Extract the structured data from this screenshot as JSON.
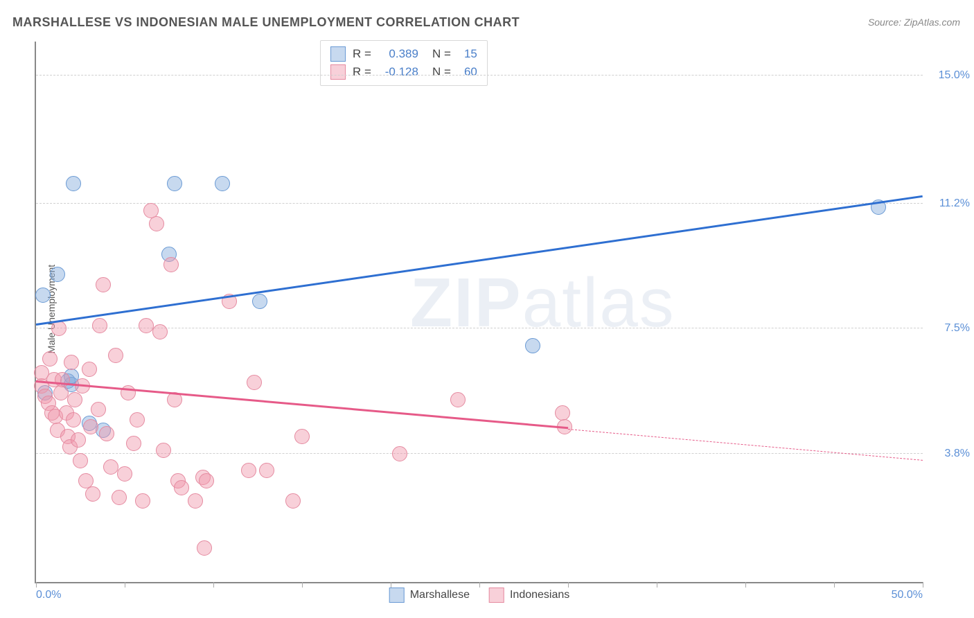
{
  "title": "MARSHALLESE VS INDONESIAN MALE UNEMPLOYMENT CORRELATION CHART",
  "source": "Source: ZipAtlas.com",
  "ylabel": "Male Unemployment",
  "watermark_a": "ZIP",
  "watermark_b": "atlas",
  "chart": {
    "type": "scatter",
    "xlim": [
      0,
      50
    ],
    "ylim": [
      0,
      16
    ],
    "x_ticks": [
      0,
      5,
      10,
      15,
      20,
      25,
      30,
      35,
      40,
      45,
      50
    ],
    "x_tick_labels": {
      "0": "0.0%",
      "50": "50.0%"
    },
    "y_gridlines": [
      3.8,
      7.5,
      11.2,
      15.0
    ],
    "y_grid_labels": [
      "3.8%",
      "7.5%",
      "11.2%",
      "15.0%"
    ],
    "grid_color": "#d0d0d0",
    "axis_color": "#888888",
    "label_color": "#5b8fd6",
    "background_color": "#ffffff",
    "point_radius": 10,
    "series": [
      {
        "name": "Marshallese",
        "fill": "rgba(130,170,220,0.45)",
        "stroke": "#6a9ad4",
        "R": "0.389",
        "N": "15",
        "trend": {
          "x1": 0,
          "y1": 7.6,
          "x2": 50,
          "y2": 11.4,
          "solid_until_x": 50,
          "color": "#2e6fd1",
          "width": 3
        },
        "points": [
          [
            0.4,
            8.5
          ],
          [
            0.5,
            5.6
          ],
          [
            1.2,
            9.1
          ],
          [
            1.8,
            5.95
          ],
          [
            2.0,
            5.85
          ],
          [
            2.1,
            11.8
          ],
          [
            2.0,
            6.1
          ],
          [
            3.0,
            4.7
          ],
          [
            3.8,
            4.5
          ],
          [
            7.5,
            9.7
          ],
          [
            7.8,
            11.8
          ],
          [
            10.5,
            11.8
          ],
          [
            12.6,
            8.3
          ],
          [
            28.0,
            7.0
          ],
          [
            47.5,
            11.1
          ]
        ]
      },
      {
        "name": "Indonesians",
        "fill": "rgba(240,150,170,0.45)",
        "stroke": "#e58aa0",
        "R": "-0.128",
        "N": "60",
        "trend": {
          "x1": 0,
          "y1": 5.9,
          "x2": 50,
          "y2": 3.6,
          "solid_until_x": 30,
          "color": "#e65a88",
          "width": 3
        },
        "points": [
          [
            0.3,
            5.8
          ],
          [
            0.3,
            6.2
          ],
          [
            0.5,
            5.5
          ],
          [
            0.7,
            5.3
          ],
          [
            0.8,
            6.6
          ],
          [
            0.9,
            5.0
          ],
          [
            1.0,
            6.0
          ],
          [
            1.1,
            4.9
          ],
          [
            1.2,
            4.5
          ],
          [
            1.3,
            7.5
          ],
          [
            1.4,
            5.6
          ],
          [
            1.5,
            6.0
          ],
          [
            1.7,
            5.0
          ],
          [
            1.8,
            4.3
          ],
          [
            1.9,
            4.0
          ],
          [
            2.0,
            6.5
          ],
          [
            2.1,
            4.8
          ],
          [
            2.2,
            5.4
          ],
          [
            2.4,
            4.2
          ],
          [
            2.5,
            3.6
          ],
          [
            2.6,
            5.8
          ],
          [
            2.8,
            3.0
          ],
          [
            3.0,
            6.3
          ],
          [
            3.1,
            4.6
          ],
          [
            3.2,
            2.6
          ],
          [
            3.5,
            5.1
          ],
          [
            3.6,
            7.6
          ],
          [
            3.8,
            8.8
          ],
          [
            4.0,
            4.4
          ],
          [
            4.2,
            3.4
          ],
          [
            4.5,
            6.7
          ],
          [
            4.7,
            2.5
          ],
          [
            5.0,
            3.2
          ],
          [
            5.2,
            5.6
          ],
          [
            5.5,
            4.1
          ],
          [
            5.7,
            4.8
          ],
          [
            6.0,
            2.4
          ],
          [
            6.2,
            7.6
          ],
          [
            6.5,
            11.0
          ],
          [
            6.8,
            10.6
          ],
          [
            7.0,
            7.4
          ],
          [
            7.2,
            3.9
          ],
          [
            7.6,
            9.4
          ],
          [
            7.8,
            5.4
          ],
          [
            8.0,
            3.0
          ],
          [
            8.2,
            2.8
          ],
          [
            9.0,
            2.4
          ],
          [
            9.5,
            1.0
          ],
          [
            9.4,
            3.1
          ],
          [
            9.6,
            3.0
          ],
          [
            10.9,
            8.3
          ],
          [
            12.0,
            3.3
          ],
          [
            12.3,
            5.9
          ],
          [
            13.0,
            3.3
          ],
          [
            14.5,
            2.4
          ],
          [
            15.0,
            4.3
          ],
          [
            20.5,
            3.8
          ],
          [
            23.8,
            5.4
          ],
          [
            29.7,
            5.0
          ],
          [
            29.8,
            4.6
          ]
        ]
      }
    ],
    "legend_top": {
      "rows": [
        {
          "swatch_fill": "rgba(130,170,220,0.45)",
          "swatch_stroke": "#6a9ad4",
          "r_label": "R =",
          "r_val": "0.389",
          "n_label": "N =",
          "n_val": "15"
        },
        {
          "swatch_fill": "rgba(240,150,170,0.45)",
          "swatch_stroke": "#e58aa0",
          "r_label": "R =",
          "r_val": "-0.128",
          "n_label": "N =",
          "n_val": "60"
        }
      ]
    },
    "legend_bottom": [
      {
        "swatch_fill": "rgba(130,170,220,0.45)",
        "swatch_stroke": "#6a9ad4",
        "label": "Marshallese"
      },
      {
        "swatch_fill": "rgba(240,150,170,0.45)",
        "swatch_stroke": "#e58aa0",
        "label": "Indonesians"
      }
    ]
  }
}
